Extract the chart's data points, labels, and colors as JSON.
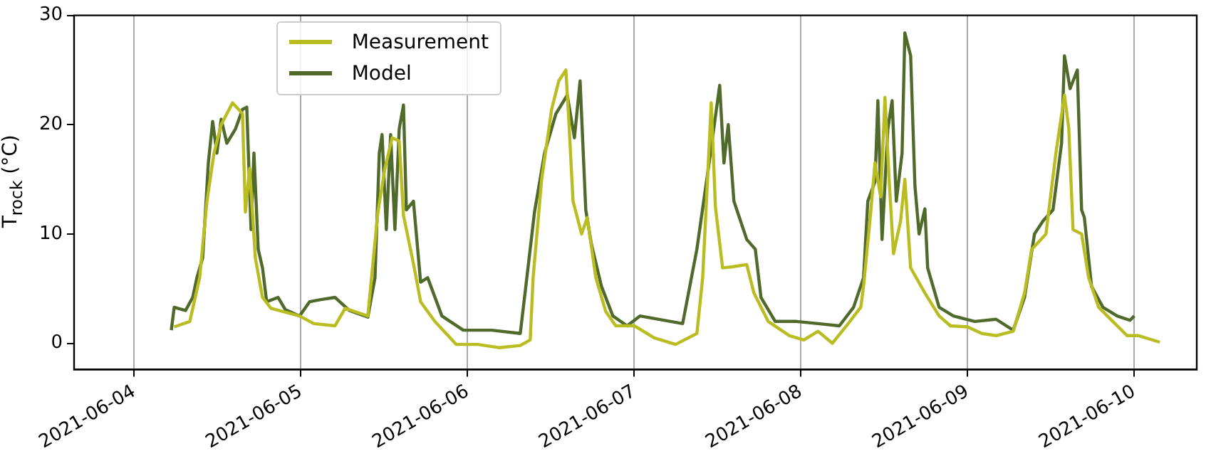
{
  "chart_data": {
    "type": "line",
    "ylabel": "T$_{rock}$ (°C)",
    "ylim": [
      -2.4,
      30
    ],
    "yticks": [
      0,
      10,
      20,
      30
    ],
    "xlim": [
      "2021-06-03T15:20",
      "2021-06-10T09:00"
    ],
    "xticks": [
      "2021-06-04",
      "2021-06-05",
      "2021-06-06",
      "2021-06-07",
      "2021-06-08",
      "2021-06-09",
      "2021-06-10"
    ],
    "grid": "x",
    "legend": "top left",
    "marker": "none",
    "line_style": "solid",
    "series": [
      {
        "name": "Measurement",
        "color": "#b9bd22",
        "x": [
          "2021-06-04T05:45",
          "2021-06-04T08:00",
          "2021-06-04T09:25",
          "2021-06-04T10:28",
          "2021-06-04T11:29",
          "2021-06-04T12:31",
          "2021-06-04T14:09",
          "2021-06-04T15:35",
          "2021-06-04T16:00",
          "2021-06-04T16:37",
          "2021-06-04T17:26",
          "2021-06-04T18:28",
          "2021-06-04T19:41",
          "2021-06-04T23:48",
          "2021-06-05T01:51",
          "2021-06-05T04:55",
          "2021-06-05T06:22",
          "2021-06-05T09:38",
          "2021-06-05T11:05",
          "2021-06-05T12:06",
          "2021-06-05T13:08",
          "2021-06-05T14:09",
          "2021-06-05T14:46",
          "2021-06-05T16:12",
          "2021-06-05T17:14",
          "2021-06-05T19:17",
          "2021-06-05T22:21",
          "2021-06-06T01:26",
          "2021-06-06T04:31",
          "2021-06-06T07:35",
          "2021-06-06T09:01",
          "2021-06-06T09:26",
          "2021-06-06T10:40",
          "2021-06-06T12:06",
          "2021-06-06T13:08",
          "2021-06-06T14:09",
          "2021-06-06T14:34",
          "2021-06-06T15:11",
          "2021-06-06T16:25",
          "2021-06-06T17:14",
          "2021-06-06T18:28",
          "2021-06-06T19:54",
          "2021-06-06T21:20",
          "2021-06-07T00:00",
          "2021-06-07T02:52",
          "2021-06-07T05:57",
          "2021-06-07T09:01",
          "2021-06-07T09:51",
          "2021-06-07T10:40",
          "2021-06-07T11:05",
          "2021-06-07T11:41",
          "2021-06-07T12:43",
          "2021-06-07T14:09",
          "2021-06-07T16:12",
          "2021-06-07T17:14",
          "2021-06-07T19:17",
          "2021-06-07T22:21",
          "2021-06-08T00:25",
          "2021-06-08T02:28",
          "2021-06-08T04:31",
          "2021-06-08T06:34",
          "2021-06-08T08:37",
          "2021-06-08T09:01",
          "2021-06-08T10:03",
          "2021-06-08T10:40",
          "2021-06-08T11:29",
          "2021-06-08T12:06",
          "2021-06-08T12:43",
          "2021-06-08T13:20",
          "2021-06-08T14:21",
          "2021-06-08T14:58",
          "2021-06-08T15:48",
          "2021-06-08T17:51",
          "2021-06-08T19:54",
          "2021-06-08T21:32",
          "2021-06-09T00:00",
          "2021-06-09T02:03",
          "2021-06-09T04:06",
          "2021-06-09T06:34",
          "2021-06-09T08:12",
          "2021-06-09T09:14",
          "2021-06-09T11:17",
          "2021-06-09T12:43",
          "2021-06-09T13:57",
          "2021-06-09T14:34",
          "2021-06-09T15:11",
          "2021-06-09T16:25",
          "2021-06-09T17:26",
          "2021-06-09T18:52",
          "2021-06-09T20:55",
          "2021-06-09T22:58",
          "2021-06-10T00:37",
          "2021-06-10T03:41"
        ],
        "values": [
          1.5,
          2.0,
          6,
          13,
          17.4,
          20,
          22,
          21,
          12,
          16,
          7.8,
          4.2,
          3.2,
          2.5,
          1.8,
          1.6,
          3.2,
          2.5,
          12,
          16,
          18.8,
          18.5,
          11.7,
          7.3,
          3.8,
          2,
          -0.1,
          -0.1,
          -0.4,
          -0.2,
          0.3,
          6,
          15,
          21.4,
          24,
          25,
          20.5,
          13,
          10,
          11.5,
          6,
          2.9,
          1.6,
          1.6,
          0.5,
          -0.1,
          0.9,
          6,
          16.5,
          22,
          12.5,
          6.9,
          7,
          7.2,
          4.6,
          2,
          0.7,
          0.3,
          1.1,
          0,
          1.6,
          3.3,
          5.2,
          12,
          16.5,
          13.4,
          22.5,
          14.8,
          8.2,
          11.2,
          15,
          6.9,
          4.6,
          2.5,
          1.6,
          1.5,
          0.9,
          0.7,
          1.1,
          4.6,
          8.6,
          10,
          17.4,
          22.7,
          19.7,
          10.4,
          10,
          6,
          3.3,
          2,
          0.7,
          0.7,
          0.1
        ]
      },
      {
        "name": "Model",
        "color": "#4f6a2b",
        "x": [
          "2021-06-04T05:20",
          "2021-06-04T05:45",
          "2021-06-04T07:23",
          "2021-06-04T08:25",
          "2021-06-04T09:01",
          "2021-06-04T09:51",
          "2021-06-04T10:40",
          "2021-06-04T11:17",
          "2021-06-04T11:54",
          "2021-06-04T12:31",
          "2021-06-04T13:20",
          "2021-06-04T14:34",
          "2021-06-04T15:35",
          "2021-06-04T16:12",
          "2021-06-04T16:49",
          "2021-06-04T17:14",
          "2021-06-04T17:51",
          "2021-06-04T18:28",
          "2021-06-04T19:04",
          "2021-06-04T20:43",
          "2021-06-04T21:44",
          "2021-06-04T23:48",
          "2021-06-05T01:14",
          "2021-06-05T02:52",
          "2021-06-05T04:55",
          "2021-06-05T06:58",
          "2021-06-05T09:38",
          "2021-06-05T10:40",
          "2021-06-05T11:17",
          "2021-06-05T11:41",
          "2021-06-05T12:18",
          "2021-06-05T12:55",
          "2021-06-05T13:32",
          "2021-06-05T14:09",
          "2021-06-05T14:46",
          "2021-06-05T15:11",
          "2021-06-05T16:12",
          "2021-06-05T17:14",
          "2021-06-05T18:15",
          "2021-06-05T20:18",
          "2021-06-05T23:23",
          "2021-06-06T03:29",
          "2021-06-06T07:35",
          "2021-06-06T08:12",
          "2021-06-06T09:38",
          "2021-06-06T11:05",
          "2021-06-06T12:43",
          "2021-06-06T14:21",
          "2021-06-06T15:23",
          "2021-06-06T16:12",
          "2021-06-06T17:01",
          "2021-06-06T17:51",
          "2021-06-06T19:17",
          "2021-06-06T20:55",
          "2021-06-06T22:58",
          "2021-06-07T00:49",
          "2021-06-07T06:58",
          "2021-06-07T09:01",
          "2021-06-07T10:40",
          "2021-06-07T12:18",
          "2021-06-07T12:55",
          "2021-06-07T13:32",
          "2021-06-07T14:21",
          "2021-06-07T16:12",
          "2021-06-07T17:26",
          "2021-06-07T18:15",
          "2021-06-07T20:18",
          "2021-06-07T23:23",
          "2021-06-08T02:28",
          "2021-06-08T05:32",
          "2021-06-08T07:35",
          "2021-06-08T09:01",
          "2021-06-08T09:38",
          "2021-06-08T10:40",
          "2021-06-08T11:05",
          "2021-06-08T11:41",
          "2021-06-08T12:31",
          "2021-06-08T13:08",
          "2021-06-08T13:44",
          "2021-06-08T14:34",
          "2021-06-08T14:58",
          "2021-06-08T15:48",
          "2021-06-08T16:25",
          "2021-06-08T17:01",
          "2021-06-08T17:51",
          "2021-06-08T18:15",
          "2021-06-08T19:54",
          "2021-06-08T21:57",
          "2021-06-09T01:02",
          "2021-06-09T04:06",
          "2021-06-09T06:34",
          "2021-06-09T08:12",
          "2021-06-09T09:38",
          "2021-06-09T10:52",
          "2021-06-09T12:18",
          "2021-06-09T13:32",
          "2021-06-09T13:57",
          "2021-06-09T14:46",
          "2021-06-09T15:48",
          "2021-06-09T16:25",
          "2021-06-09T16:49",
          "2021-06-09T17:51",
          "2021-06-09T19:29",
          "2021-06-09T21:32",
          "2021-06-09T23:23",
          "2021-06-10T00:00"
        ],
        "values": [
          1.2,
          3.3,
          3,
          4.2,
          6,
          7.8,
          16.5,
          20.3,
          17.4,
          20.5,
          18.3,
          19.6,
          21.4,
          21.6,
          10.4,
          17.4,
          8.6,
          6.9,
          3.8,
          4.2,
          3.1,
          2.5,
          3.8,
          4,
          4.2,
          3,
          2.4,
          6,
          17.4,
          19.1,
          10.4,
          19.1,
          10.4,
          19.6,
          21.8,
          12.2,
          13,
          5.6,
          6,
          2.5,
          1.2,
          1.2,
          0.9,
          4.2,
          12,
          17.4,
          21,
          22.7,
          18.8,
          24,
          12.2,
          9,
          5.2,
          2.5,
          1.6,
          2.5,
          1.8,
          8.6,
          16,
          23.6,
          16.5,
          20,
          13,
          9.5,
          8.6,
          4.2,
          2,
          2,
          1.8,
          1.6,
          3.3,
          6,
          13,
          14.8,
          22.2,
          9.5,
          19.6,
          22.2,
          13,
          17.4,
          28.4,
          26.3,
          14.4,
          10,
          12.3,
          6.9,
          3.3,
          2.5,
          2,
          2.2,
          1.2,
          4.2,
          10,
          11.2,
          12.2,
          18.3,
          26.3,
          23.3,
          25,
          12.2,
          11.5,
          5.2,
          3.3,
          2.5,
          2.1,
          2.5
        ]
      }
    ]
  }
}
